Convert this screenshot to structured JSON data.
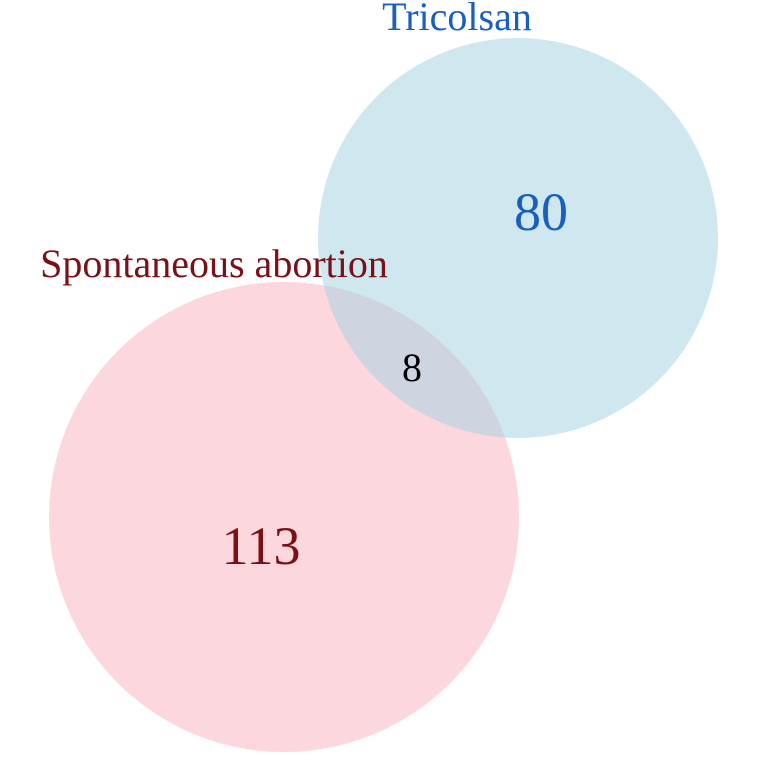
{
  "diagram": {
    "type": "venn",
    "sets": [
      {
        "id": "tricolsan",
        "label": "Tricolsan",
        "only_count": "80",
        "fill_color": "#a8d4e2",
        "text_color": "#1a5fbf"
      },
      {
        "id": "spontaneous-abortion",
        "label": "Spontaneous abortion",
        "only_count": "113",
        "fill_color": "#fbbcc8",
        "text_color": "#7a1018"
      }
    ],
    "intersection": {
      "count": "8",
      "text_color": "#000000"
    }
  }
}
